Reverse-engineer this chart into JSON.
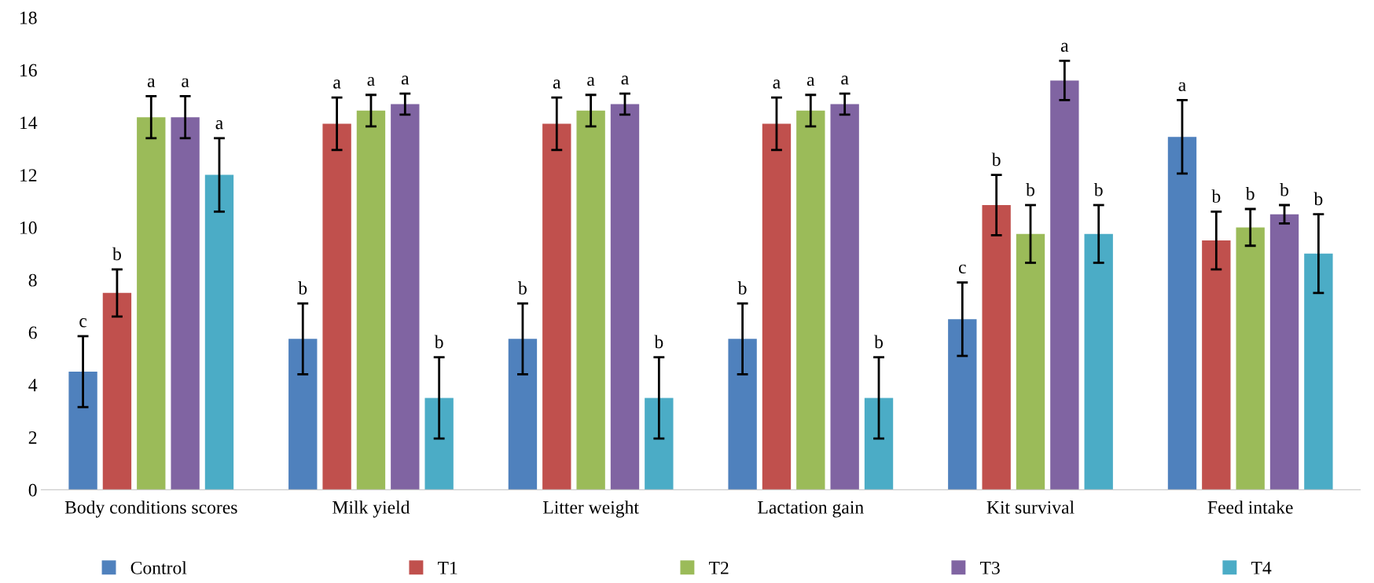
{
  "chart_data": {
    "type": "bar",
    "categories": [
      "Body conditions scores",
      "Milk yield",
      "Litter weight",
      "Lactation gain",
      "Kit survival",
      "Feed intake"
    ],
    "series": [
      {
        "name": "Control",
        "color": "#4f81bd",
        "values": [
          4.5,
          5.75,
          5.75,
          5.75,
          6.5,
          13.45
        ],
        "errors": [
          1.35,
          1.35,
          1.35,
          1.35,
          1.4,
          1.4
        ],
        "value_labels": [
          "c",
          "b",
          "b",
          "b",
          "c",
          "a"
        ]
      },
      {
        "name": "T1",
        "color": "#c0504d",
        "values": [
          7.5,
          13.95,
          13.95,
          13.95,
          10.85,
          9.5
        ],
        "errors": [
          0.9,
          1.0,
          1.0,
          1.0,
          1.15,
          1.1
        ],
        "value_labels": [
          "b",
          "a",
          "a",
          "a",
          "b",
          "b"
        ]
      },
      {
        "name": "T2",
        "color": "#9bbb59",
        "values": [
          14.2,
          14.45,
          14.45,
          14.45,
          9.75,
          10.0
        ],
        "errors": [
          0.8,
          0.6,
          0.6,
          0.6,
          1.1,
          0.7
        ],
        "value_labels": [
          "a",
          "a",
          "a",
          "a",
          "b",
          "b"
        ]
      },
      {
        "name": "T3",
        "color": "#8064a2",
        "values": [
          14.2,
          14.7,
          14.7,
          14.7,
          15.6,
          10.5
        ],
        "errors": [
          0.8,
          0.4,
          0.4,
          0.4,
          0.75,
          0.35
        ],
        "value_labels": [
          "a",
          "a",
          "a",
          "a",
          "a",
          "b"
        ]
      },
      {
        "name": "T4",
        "color": "#4bacc6",
        "values": [
          12.0,
          3.5,
          3.5,
          3.5,
          9.75,
          9.0
        ],
        "errors": [
          1.4,
          1.55,
          1.55,
          1.55,
          1.1,
          1.5
        ],
        "value_labels": [
          "a",
          "b",
          "b",
          "b",
          "b",
          "b"
        ]
      }
    ],
    "ylim": [
      0,
      18
    ],
    "yticks": [
      0,
      2,
      4,
      6,
      8,
      10,
      12,
      14,
      16,
      18
    ],
    "grid": false,
    "legend": "bottom"
  }
}
